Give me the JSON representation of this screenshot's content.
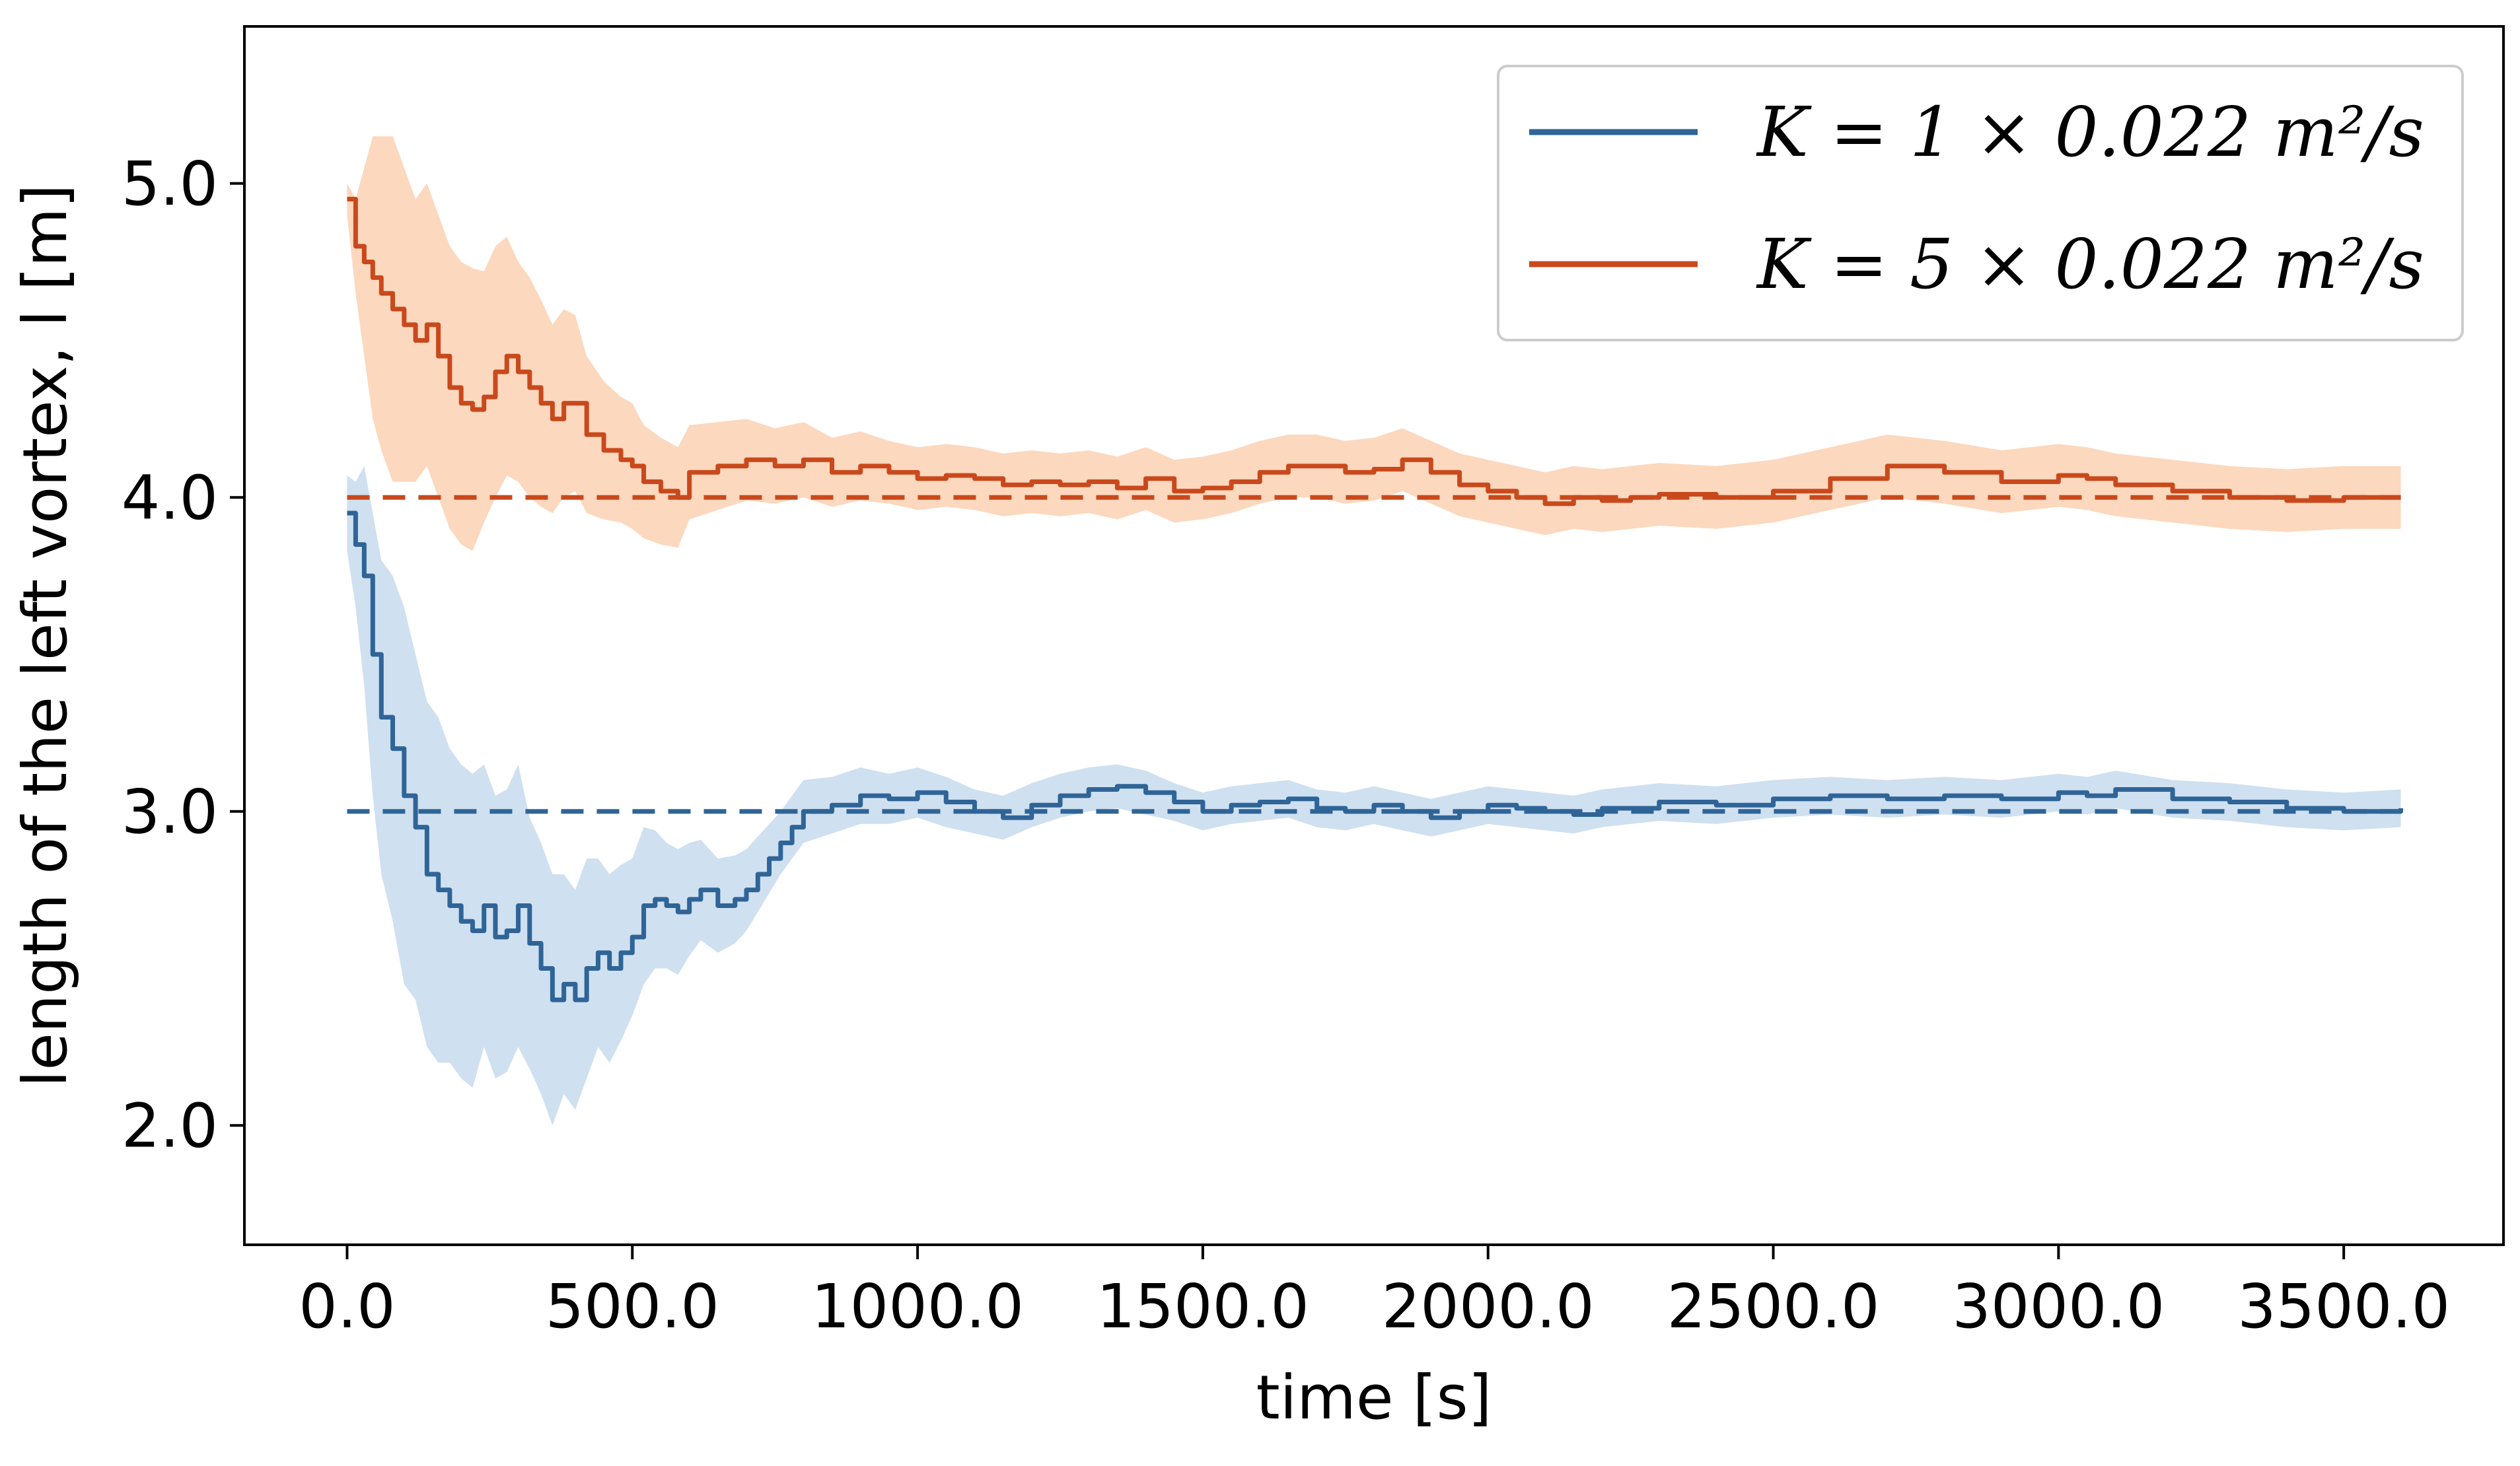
{
  "chart_data": {
    "type": "line",
    "xlabel": "time [s]",
    "ylabel": "length of the left vortex, l [m]",
    "xlim": [
      -180,
      3780
    ],
    "ylim": [
      1.62,
      5.5
    ],
    "xticks": [
      0,
      500,
      1000,
      1500,
      2000,
      2500,
      3000,
      3500
    ],
    "xtick_labels": [
      "0.0",
      "500.0",
      "1000.0",
      "1500.0",
      "2000.0",
      "2500.0",
      "3000.0",
      "3500.0"
    ],
    "yticks": [
      2.0,
      3.0,
      4.0,
      5.0
    ],
    "ytick_labels": [
      "2.0",
      "3.0",
      "4.0",
      "5.0"
    ],
    "grid": false,
    "legend_position": "top-right",
    "series": [
      {
        "name": "K = 1 × 0.022 m²/s",
        "color": "#2f6497",
        "band_color": "#cfe0f0",
        "reference_value": 3.0,
        "x": [
          0,
          15,
          30,
          45,
          60,
          80,
          100,
          120,
          140,
          160,
          180,
          200,
          220,
          240,
          260,
          280,
          300,
          320,
          340,
          360,
          380,
          400,
          420,
          440,
          460,
          480,
          500,
          520,
          540,
          560,
          580,
          600,
          620,
          650,
          680,
          700,
          720,
          740,
          760,
          780,
          800,
          850,
          900,
          950,
          1000,
          1050,
          1100,
          1150,
          1200,
          1250,
          1300,
          1350,
          1400,
          1450,
          1500,
          1550,
          1600,
          1650,
          1700,
          1750,
          1800,
          1850,
          1900,
          1950,
          2000,
          2050,
          2100,
          2150,
          2200,
          2300,
          2400,
          2500,
          2600,
          2700,
          2800,
          2900,
          3000,
          3050,
          3100,
          3200,
          3300,
          3400,
          3500,
          3600
        ],
        "y": [
          3.95,
          3.85,
          3.75,
          3.5,
          3.3,
          3.2,
          3.05,
          2.95,
          2.8,
          2.75,
          2.7,
          2.65,
          2.62,
          2.7,
          2.6,
          2.62,
          2.7,
          2.58,
          2.5,
          2.4,
          2.45,
          2.4,
          2.5,
          2.55,
          2.5,
          2.55,
          2.6,
          2.7,
          2.72,
          2.7,
          2.68,
          2.72,
          2.75,
          2.7,
          2.72,
          2.75,
          2.8,
          2.85,
          2.9,
          2.95,
          3.0,
          3.02,
          3.05,
          3.04,
          3.06,
          3.03,
          3.0,
          2.98,
          3.02,
          3.05,
          3.07,
          3.08,
          3.06,
          3.03,
          3.0,
          3.02,
          3.03,
          3.04,
          3.01,
          3.0,
          3.02,
          3.0,
          2.98,
          3.0,
          3.02,
          3.01,
          3.0,
          2.99,
          3.01,
          3.03,
          3.02,
          3.04,
          3.05,
          3.04,
          3.05,
          3.04,
          3.06,
          3.05,
          3.07,
          3.04,
          3.03,
          3.01,
          3.0,
          3.01
        ],
        "band_half_width": [
          0.12,
          0.2,
          0.35,
          0.45,
          0.5,
          0.55,
          0.6,
          0.55,
          0.55,
          0.55,
          0.5,
          0.5,
          0.5,
          0.45,
          0.45,
          0.45,
          0.45,
          0.4,
          0.4,
          0.4,
          0.35,
          0.35,
          0.35,
          0.3,
          0.3,
          0.28,
          0.25,
          0.25,
          0.22,
          0.2,
          0.2,
          0.18,
          0.16,
          0.15,
          0.14,
          0.13,
          0.12,
          0.11,
          0.1,
          0.1,
          0.1,
          0.09,
          0.09,
          0.08,
          0.08,
          0.08,
          0.07,
          0.07,
          0.07,
          0.07,
          0.07,
          0.07,
          0.07,
          0.06,
          0.06,
          0.06,
          0.06,
          0.06,
          0.06,
          0.06,
          0.06,
          0.06,
          0.06,
          0.06,
          0.06,
          0.06,
          0.06,
          0.06,
          0.06,
          0.06,
          0.06,
          0.06,
          0.06,
          0.06,
          0.06,
          0.06,
          0.06,
          0.06,
          0.06,
          0.06,
          0.06,
          0.06,
          0.06,
          0.06
        ]
      },
      {
        "name": "K = 5 × 0.022 m²/s",
        "color": "#c9491c",
        "band_color": "#fcd8be",
        "reference_value": 4.0,
        "x": [
          0,
          15,
          30,
          45,
          60,
          80,
          100,
          120,
          140,
          160,
          180,
          200,
          220,
          240,
          260,
          280,
          300,
          320,
          340,
          360,
          380,
          400,
          420,
          450,
          480,
          500,
          520,
          550,
          580,
          600,
          650,
          700,
          750,
          800,
          850,
          900,
          950,
          1000,
          1050,
          1100,
          1150,
          1200,
          1250,
          1300,
          1350,
          1400,
          1450,
          1500,
          1550,
          1600,
          1650,
          1700,
          1750,
          1800,
          1850,
          1900,
          1950,
          2000,
          2050,
          2100,
          2150,
          2200,
          2250,
          2300,
          2400,
          2500,
          2600,
          2700,
          2800,
          2900,
          3000,
          3050,
          3100,
          3200,
          3300,
          3400,
          3500,
          3600
        ],
        "y": [
          4.95,
          4.8,
          4.75,
          4.7,
          4.65,
          4.6,
          4.55,
          4.5,
          4.55,
          4.45,
          4.35,
          4.3,
          4.28,
          4.32,
          4.4,
          4.45,
          4.4,
          4.35,
          4.3,
          4.25,
          4.3,
          4.3,
          4.2,
          4.15,
          4.12,
          4.1,
          4.05,
          4.02,
          4.0,
          4.08,
          4.1,
          4.12,
          4.1,
          4.12,
          4.08,
          4.1,
          4.08,
          4.06,
          4.07,
          4.06,
          4.04,
          4.05,
          4.04,
          4.05,
          4.03,
          4.06,
          4.02,
          4.03,
          4.05,
          4.08,
          4.1,
          4.1,
          4.08,
          4.09,
          4.12,
          4.08,
          4.04,
          4.02,
          4.0,
          3.98,
          4.0,
          3.99,
          4.0,
          4.01,
          4.0,
          4.02,
          4.06,
          4.1,
          4.08,
          4.05,
          4.07,
          4.06,
          4.04,
          4.02,
          4.0,
          3.99,
          4.0,
          4.0
        ],
        "band_half_width": [
          0.05,
          0.15,
          0.3,
          0.45,
          0.5,
          0.55,
          0.5,
          0.45,
          0.45,
          0.45,
          0.45,
          0.45,
          0.45,
          0.4,
          0.4,
          0.38,
          0.35,
          0.35,
          0.33,
          0.3,
          0.3,
          0.28,
          0.25,
          0.22,
          0.2,
          0.2,
          0.18,
          0.17,
          0.16,
          0.15,
          0.14,
          0.13,
          0.12,
          0.12,
          0.11,
          0.11,
          0.1,
          0.1,
          0.1,
          0.1,
          0.1,
          0.1,
          0.1,
          0.1,
          0.1,
          0.1,
          0.1,
          0.1,
          0.1,
          0.1,
          0.1,
          0.1,
          0.1,
          0.1,
          0.1,
          0.1,
          0.1,
          0.1,
          0.1,
          0.1,
          0.1,
          0.1,
          0.1,
          0.1,
          0.1,
          0.1,
          0.1,
          0.1,
          0.1,
          0.1,
          0.1,
          0.1,
          0.1,
          0.1,
          0.1,
          0.1,
          0.1,
          0.1
        ]
      }
    ]
  }
}
